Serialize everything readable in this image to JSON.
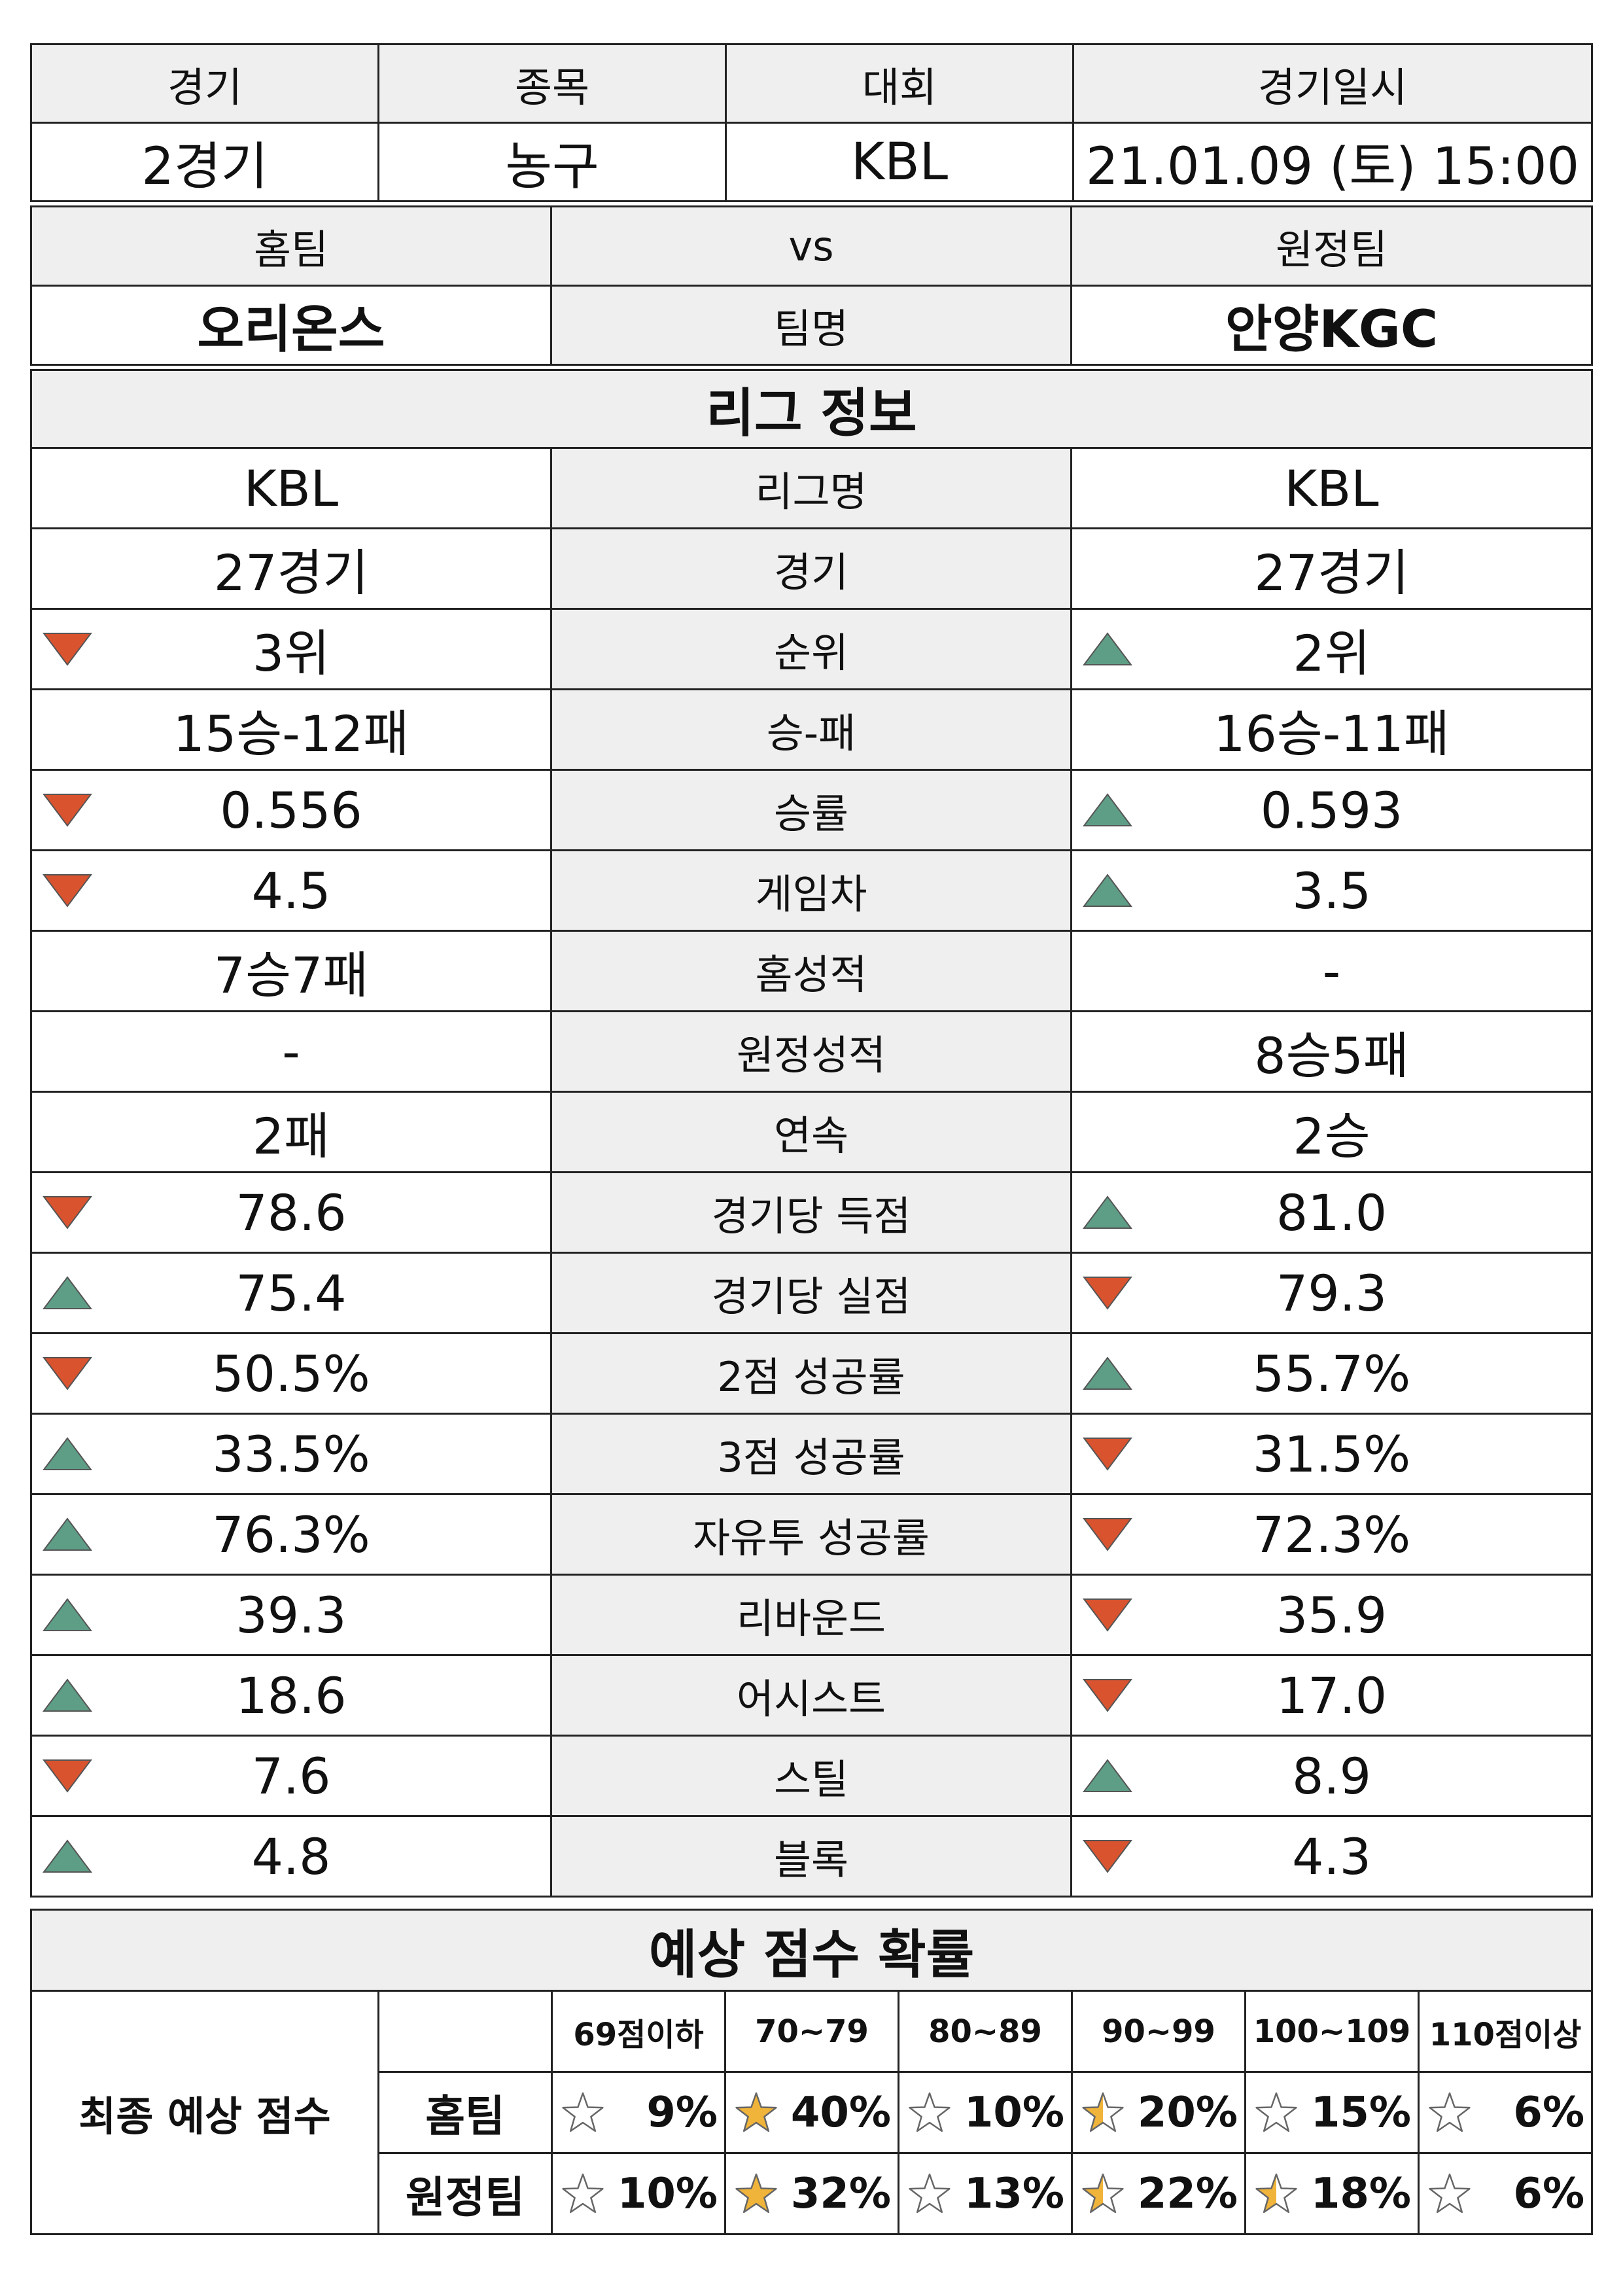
{
  "match": {
    "headers": [
      "경기",
      "종목",
      "대회",
      "경기일시"
    ],
    "values": [
      "2경기",
      "농구",
      "KBL",
      "21.01.09 (토) 15:00"
    ]
  },
  "teams": {
    "home_label": "홈팀",
    "vs_label": "vs",
    "away_label": "원정팀",
    "home_name": "오리온스",
    "name_label": "팀명",
    "away_name": "안양KGC"
  },
  "league": {
    "title": "리그 정보",
    "rows": [
      {
        "label": "리그명",
        "home": "KBL",
        "away": "KBL",
        "home_arrow": "",
        "away_arrow": ""
      },
      {
        "label": "경기",
        "home": "27경기",
        "away": "27경기",
        "home_arrow": "",
        "away_arrow": ""
      },
      {
        "label": "순위",
        "home": "3위",
        "away": "2위",
        "home_arrow": "down",
        "away_arrow": "up"
      },
      {
        "label": "승-패",
        "home": "15승-12패",
        "away": "16승-11패",
        "home_arrow": "",
        "away_arrow": ""
      },
      {
        "label": "승률",
        "home": "0.556",
        "away": "0.593",
        "home_arrow": "down",
        "away_arrow": "up"
      },
      {
        "label": "게임차",
        "home": "4.5",
        "away": "3.5",
        "home_arrow": "down",
        "away_arrow": "up"
      },
      {
        "label": "홈성적",
        "home": "7승7패",
        "away": "-",
        "home_arrow": "",
        "away_arrow": ""
      },
      {
        "label": "원정성적",
        "home": "-",
        "away": "8승5패",
        "home_arrow": "",
        "away_arrow": ""
      },
      {
        "label": "연속",
        "home": "2패",
        "away": "2승",
        "home_arrow": "",
        "away_arrow": ""
      },
      {
        "label": "경기당 득점",
        "home": "78.6",
        "away": "81.0",
        "home_arrow": "down",
        "away_arrow": "up"
      },
      {
        "label": "경기당 실점",
        "home": "75.4",
        "away": "79.3",
        "home_arrow": "up",
        "away_arrow": "down"
      },
      {
        "label": "2점 성공률",
        "home": "50.5%",
        "away": "55.7%",
        "home_arrow": "down",
        "away_arrow": "up"
      },
      {
        "label": "3점 성공률",
        "home": "33.5%",
        "away": "31.5%",
        "home_arrow": "up",
        "away_arrow": "down"
      },
      {
        "label": "자유투 성공률",
        "home": "76.3%",
        "away": "72.3%",
        "home_arrow": "up",
        "away_arrow": "down"
      },
      {
        "label": "리바운드",
        "home": "39.3",
        "away": "35.9",
        "home_arrow": "up",
        "away_arrow": "down"
      },
      {
        "label": "어시스트",
        "home": "18.6",
        "away": "17.0",
        "home_arrow": "up",
        "away_arrow": "down"
      },
      {
        "label": "스틸",
        "home": "7.6",
        "away": "8.9",
        "home_arrow": "down",
        "away_arrow": "up"
      },
      {
        "label": "블록",
        "home": "4.8",
        "away": "4.3",
        "home_arrow": "up",
        "away_arrow": "down"
      }
    ]
  },
  "prediction": {
    "title": "예상 점수 확률",
    "final_label": "최종 예상 점수",
    "ranges": [
      "69점이하",
      "70~79",
      "80~89",
      "90~99",
      "100~109",
      "110점이상"
    ],
    "home_label": "홈팀",
    "away_label": "원정팀",
    "home": [
      {
        "pct": "9%",
        "star": "empty"
      },
      {
        "pct": "40%",
        "star": "full"
      },
      {
        "pct": "10%",
        "star": "empty"
      },
      {
        "pct": "20%",
        "star": "half"
      },
      {
        "pct": "15%",
        "star": "empty"
      },
      {
        "pct": "6%",
        "star": "empty"
      }
    ],
    "away": [
      {
        "pct": "10%",
        "star": "empty"
      },
      {
        "pct": "32%",
        "star": "full"
      },
      {
        "pct": "13%",
        "star": "empty"
      },
      {
        "pct": "22%",
        "star": "half"
      },
      {
        "pct": "18%",
        "star": "half"
      },
      {
        "pct": "6%",
        "star": "empty"
      }
    ]
  },
  "colors": {
    "up_arrow": "#5e9e86",
    "down_arrow": "#d9532f",
    "star_full": "#f0b43a",
    "header_bg": "#efefef"
  },
  "icons": {
    "up": "triangle-up-icon",
    "down": "triangle-down-icon",
    "star": "star-icon"
  }
}
